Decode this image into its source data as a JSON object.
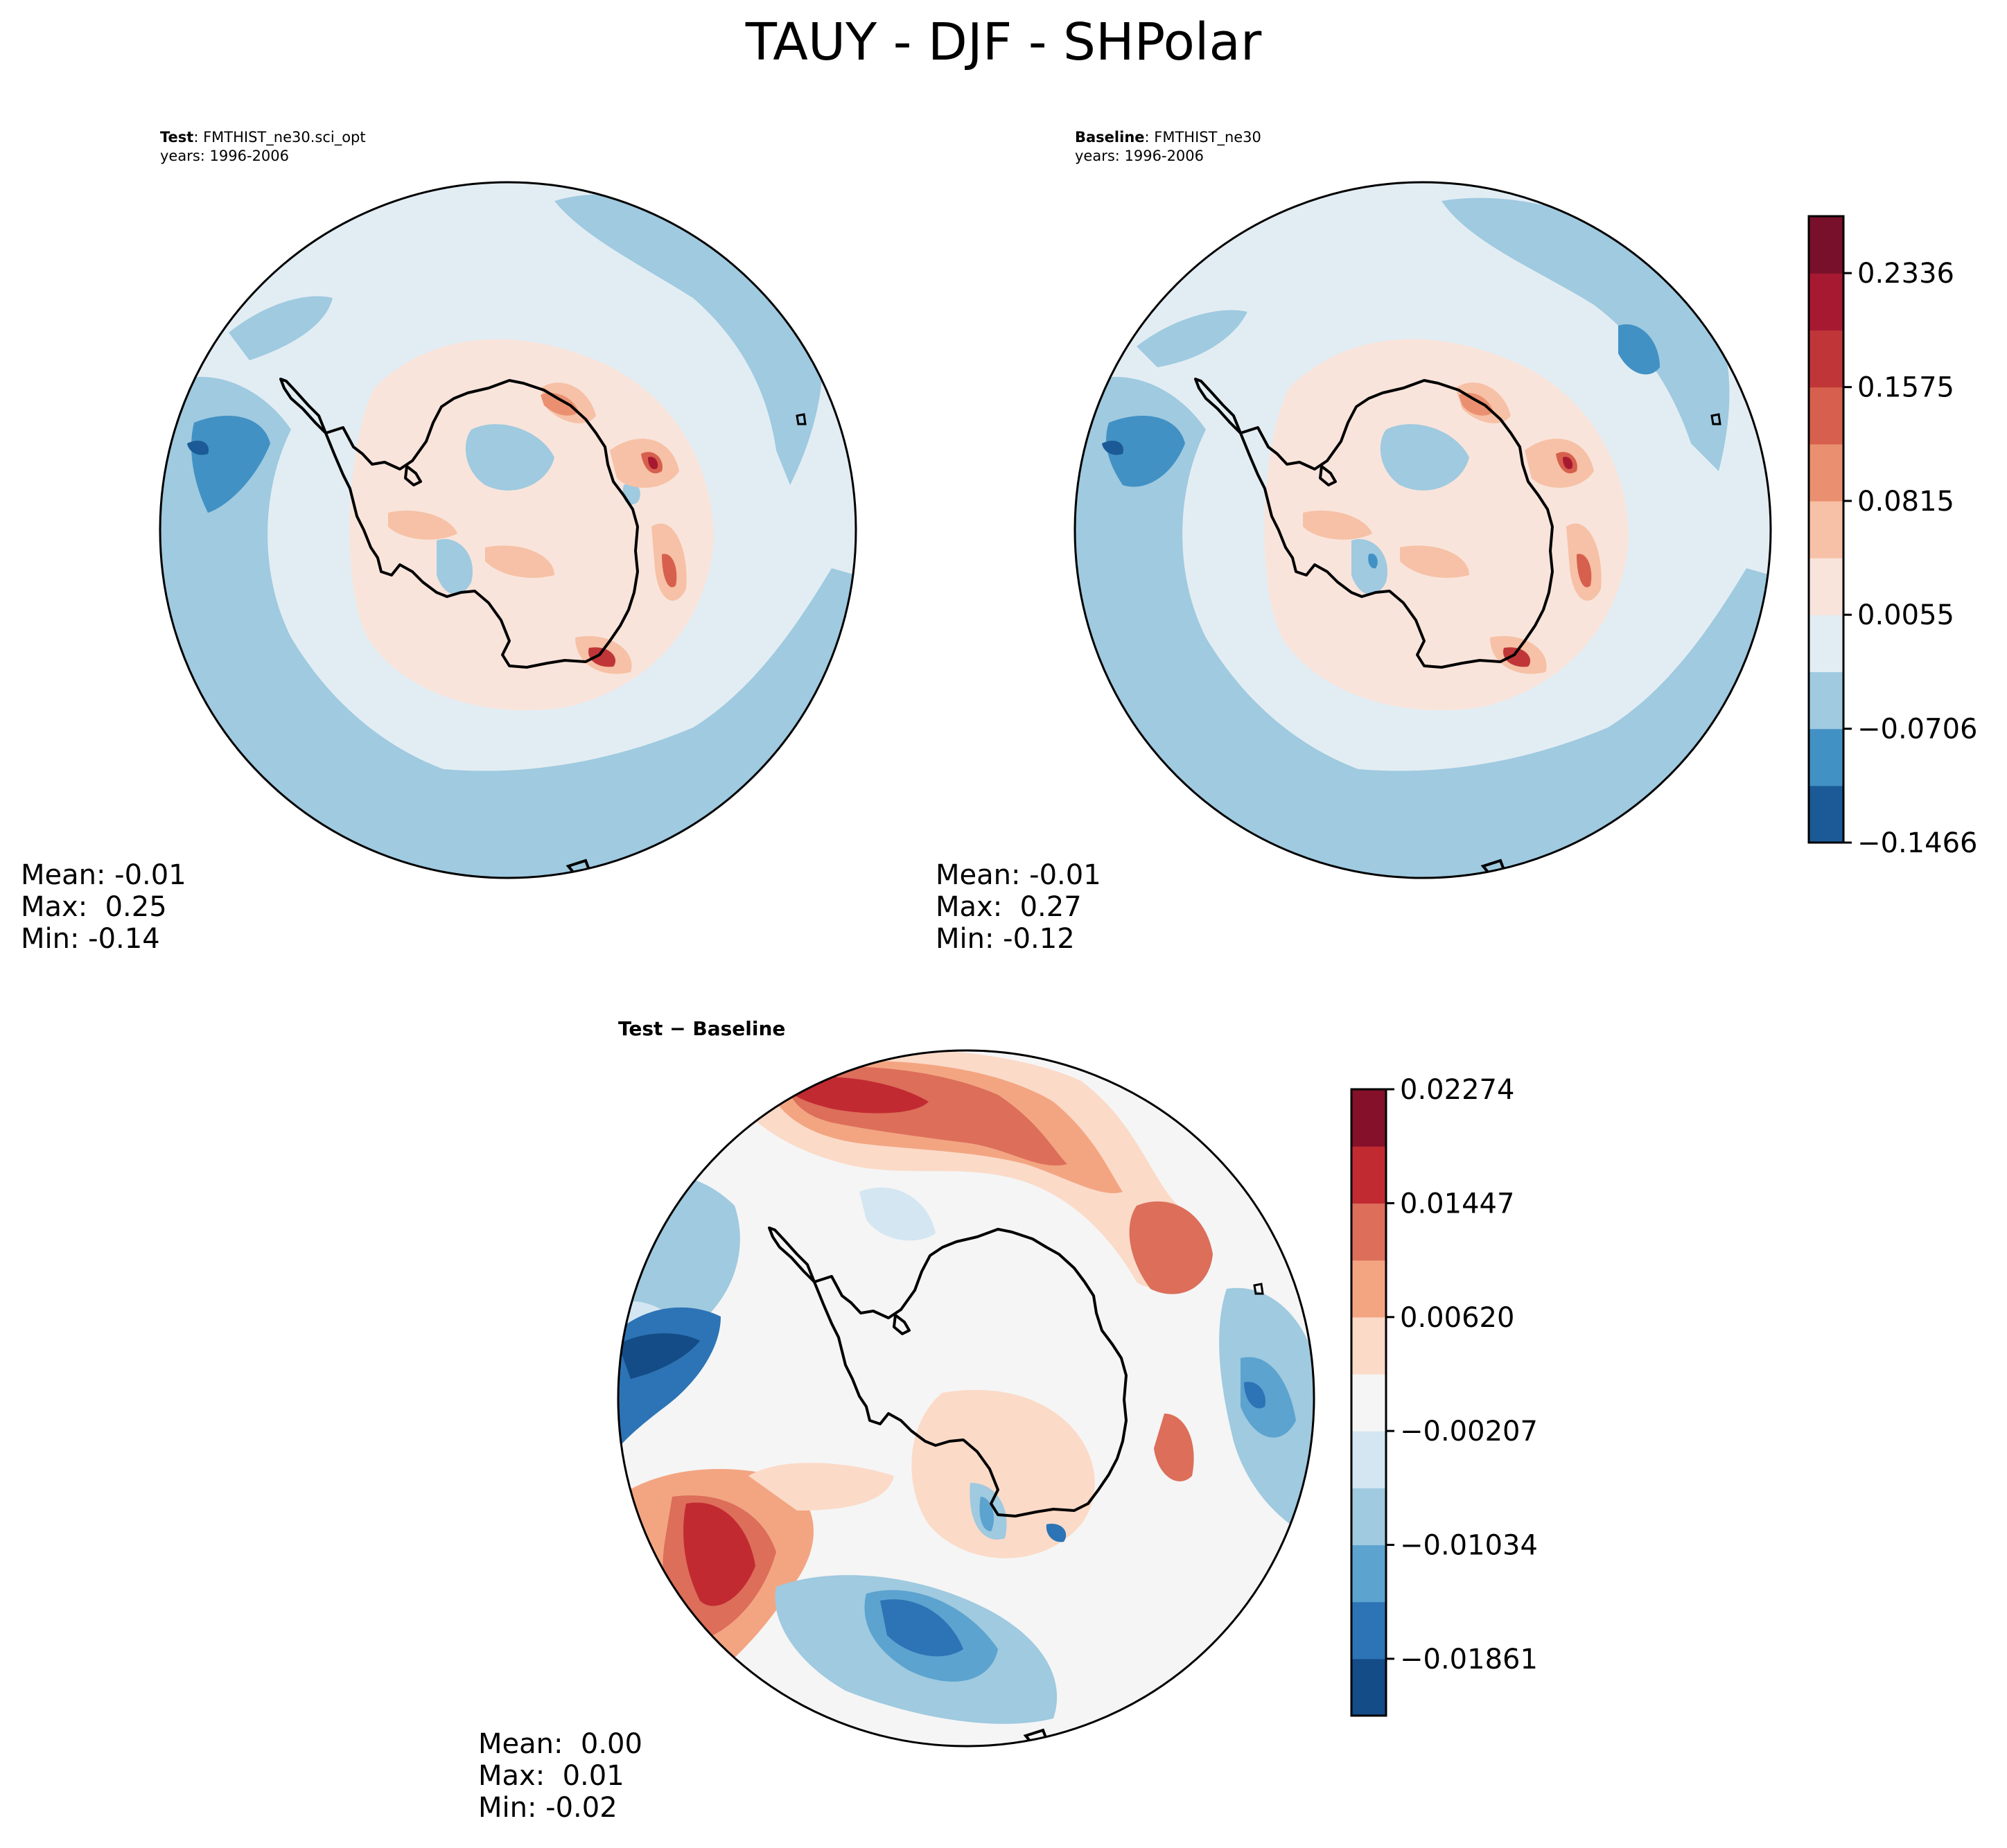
{
  "chart_data": [
    {
      "type": "heatmap",
      "projection": "south-polar-stereographic",
      "panel": "test",
      "title_bold": "Test",
      "title_text": "FMTHIST_ne30.sci_opt",
      "years": "years: 1996-2006",
      "stats": {
        "mean_label": "Mean: -0.01",
        "max_label": "Max:  0.25",
        "min_label": "Min: -0.14"
      },
      "field_summary": {
        "mean": -0.01,
        "max": 0.25,
        "min": -0.14
      }
    },
    {
      "type": "heatmap",
      "projection": "south-polar-stereographic",
      "panel": "baseline",
      "title_bold": "Baseline",
      "title_text": "FMTHIST_ne30",
      "years": "years: 1996-2006",
      "stats": {
        "mean_label": "Mean: -0.01",
        "max_label": "Max:  0.27",
        "min_label": "Min: -0.12"
      },
      "field_summary": {
        "mean": -0.01,
        "max": 0.27,
        "min": -0.12
      }
    },
    {
      "type": "heatmap",
      "projection": "south-polar-stereographic",
      "panel": "difference",
      "title_bold": "Test − Baseline",
      "stats": {
        "mean_label": "Mean:  0.00",
        "max_label": "Max:  0.01",
        "min_label": "Min: -0.02"
      },
      "field_summary": {
        "mean": 0.0,
        "max": 0.01,
        "min": -0.02
      }
    }
  ],
  "figure": {
    "suptitle": "TAUY - DJF - SHPolar"
  },
  "colorbars": {
    "main": {
      "levels": [
        -0.1466,
        -0.1086,
        -0.0706,
        -0.0326,
        0.0055,
        0.0435,
        0.0815,
        0.1195,
        0.1575,
        0.1956,
        0.2336,
        0.2716
      ],
      "colors": [
        "#1b5a96",
        "#4291c4",
        "#9fcae0",
        "#e2edf3",
        "#f9e4db",
        "#f6c1a6",
        "#ea9070",
        "#d6604d",
        "#c03638",
        "#a71931",
        "#78102b"
      ],
      "tick_labels": [
        "−0.1466",
        "−0.0706",
        "0.0055",
        "0.0815",
        "0.1575",
        "0.2336"
      ],
      "tick_values": [
        -0.1466,
        -0.0706,
        0.0055,
        0.0815,
        0.1575,
        0.2336
      ]
    },
    "diff": {
      "levels": [
        -0.02274,
        -0.01861,
        -0.01448,
        -0.01034,
        -0.00621,
        -0.00207,
        0.00207,
        0.0062,
        0.01034,
        0.01447,
        0.01861,
        0.02274
      ],
      "colors": [
        "#144c87",
        "#2c74b5",
        "#5ca3cf",
        "#9fcae0",
        "#d4e6f1",
        "#f5f5f5",
        "#fbdac8",
        "#f3a582",
        "#dc6e5a",
        "#c22a32",
        "#85102a"
      ],
      "tick_labels": [
        "−0.01861",
        "−0.01034",
        "−0.00207",
        "0.00620",
        "0.01447",
        "0.02274"
      ],
      "tick_values": [
        -0.01861,
        -0.01034,
        -0.00207,
        0.0062,
        0.01447,
        0.02274
      ]
    }
  }
}
